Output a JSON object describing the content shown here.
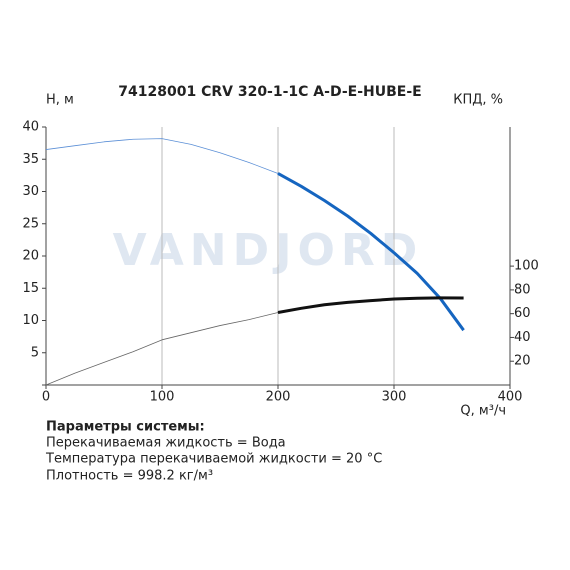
{
  "chart_data": {
    "type": "line",
    "title": "74128001 CRV 320-1-1C A-D-E-HUBE-E",
    "ylabel": "Н, м",
    "y2label": "КПД, %",
    "xlabel": "Q, м³/ч",
    "watermark": "VANDJORD",
    "x": [
      0,
      25,
      50,
      75,
      100,
      125,
      150,
      175,
      200,
      220,
      240,
      260,
      280,
      300,
      320,
      340,
      360
    ],
    "series": [
      {
        "color": "#5b8fd6",
        "line_width": 0.8,
        "values": [
          36.5,
          37.1,
          37.7,
          38.1,
          38.2,
          37.3,
          36,
          34.5,
          32.8,
          null,
          null,
          null,
          null,
          null,
          null,
          null,
          null
        ]
      },
      {
        "color": "#1565c0",
        "line_width": 3,
        "values": [
          null,
          null,
          null,
          null,
          null,
          null,
          null,
          null,
          32.8,
          30.8,
          28.6,
          26.2,
          23.5,
          20.5,
          17.3,
          13.4,
          8.5
        ]
      },
      {
        "color": "#666666",
        "line_width": 0.8,
        "axis": "y2",
        "values": [
          0,
          10,
          19,
          28,
          38,
          44,
          50,
          55,
          61,
          null,
          null,
          null,
          null,
          null,
          null,
          null,
          null
        ]
      },
      {
        "color": "#111111",
        "line_width": 3,
        "axis": "y2",
        "values": [
          null,
          null,
          null,
          null,
          null,
          null,
          null,
          null,
          61,
          64.5,
          67.5,
          69.5,
          71,
          72.3,
          73,
          73.3,
          73.2
        ]
      }
    ],
    "xlim": [
      0,
      400
    ],
    "xticks": [
      0,
      100,
      200,
      300,
      400
    ],
    "ylim": [
      0,
      40
    ],
    "yticks": [
      0,
      5,
      10,
      15,
      20,
      25,
      30,
      35,
      40
    ],
    "y2lim": [
      0,
      217
    ],
    "y2ticks": [
      20,
      40,
      60,
      80,
      100
    ],
    "grid": "x"
  },
  "system_parameters": {
    "title": "Параметры системы:",
    "lines": [
      "Перекачиваемая жидкость = Вода",
      "Температура перекачиваемой жидкости = 20 °C",
      "Плотность = 998.2 кг/м³"
    ]
  }
}
